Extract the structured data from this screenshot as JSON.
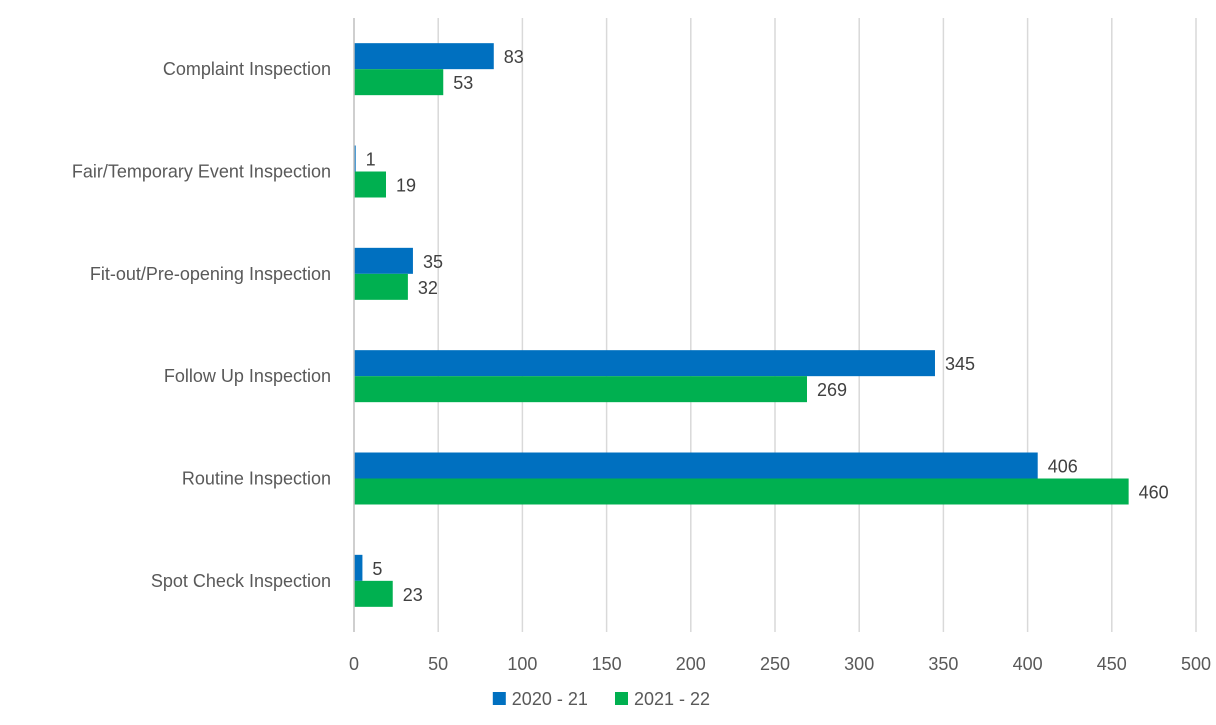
{
  "chart_data": {
    "type": "bar",
    "orientation": "horizontal",
    "categories": [
      "Complaint Inspection",
      "Fair/Temporary Event Inspection",
      "Fit-out/Pre-opening Inspection",
      "Follow Up Inspection",
      "Routine Inspection",
      "Spot Check Inspection"
    ],
    "series": [
      {
        "name": "2020 - 21",
        "color": "#0070c0",
        "values": [
          83,
          1,
          35,
          345,
          406,
          5
        ]
      },
      {
        "name": "2021 - 22",
        "color": "#00b050",
        "values": [
          53,
          19,
          32,
          269,
          460,
          23
        ]
      }
    ],
    "xlim": [
      0,
      500
    ],
    "x_ticks": [
      "0",
      "50",
      "100",
      "150",
      "200",
      "250",
      "300",
      "350",
      "400",
      "450",
      "500"
    ],
    "title": "",
    "xlabel": "",
    "ylabel": "",
    "grid": true,
    "data_labels": true,
    "legend_position": "bottom"
  }
}
